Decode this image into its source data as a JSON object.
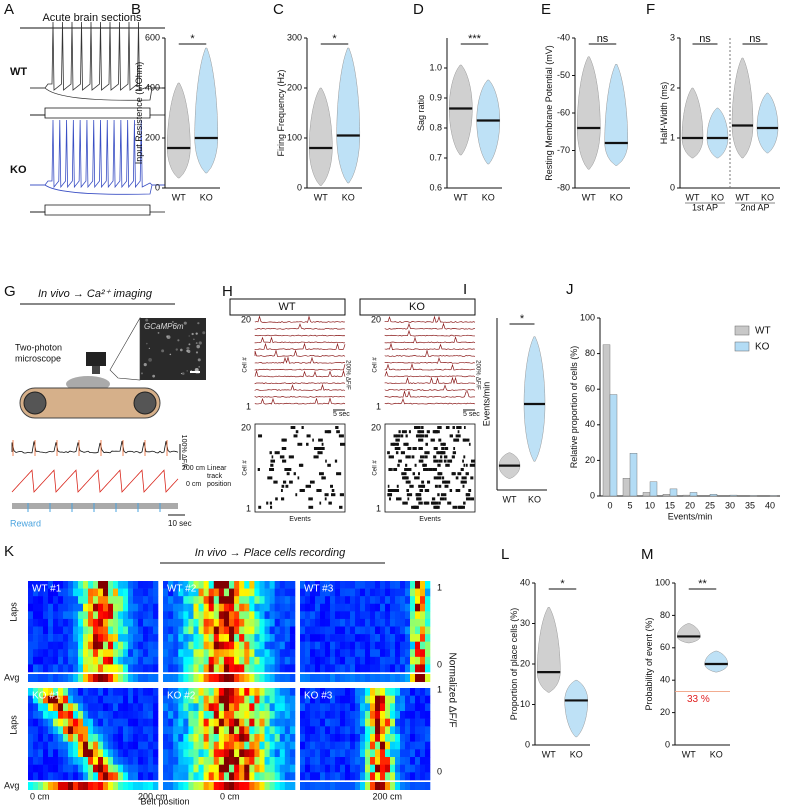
{
  "panels": {
    "A": {
      "label": "A",
      "title": "Acute brain sections",
      "rows": [
        "WT",
        "KO"
      ]
    },
    "G": {
      "label": "G",
      "title": "In vivo → Ca²⁺ imaging",
      "image_label": "GCaMP6m",
      "microscope": [
        "Two-photon",
        "microscope"
      ],
      "scale_df": "100% ΔF/F",
      "track_top": "200 cm",
      "track_label": [
        "Linear",
        "track"
      ],
      "track_bottom": "0 cm",
      "track_position": "position",
      "reward": "Reward",
      "time_scale": "10 sec"
    },
    "H": {
      "label": "H",
      "groups": [
        "WT",
        "KO"
      ],
      "cell_top": "20",
      "cell_bottom": "1",
      "cell_axis": "Cell #",
      "scale_df": "200% ΔF/F",
      "time_scale": "5 sec",
      "events": "Events"
    },
    "K": {
      "label": "K",
      "title": "In vivo → Place cells recording",
      "maps": [
        "WT #1",
        "WT #2",
        "WT #3",
        "KO #1",
        "KO #2",
        "KO #3"
      ],
      "laps": "Laps",
      "avg": "Avg",
      "colorbar": "Normalized ΔF/F",
      "colorbar_max": "1",
      "colorbar_min": "0",
      "x_start": "0 cm",
      "x_end": "200 cm",
      "x_label": "Belt position"
    }
  },
  "chart_data": [
    {
      "type": "violin",
      "label": "B",
      "y_label": "Input Resistence (MOhm)",
      "categories": [
        "WT",
        "KO"
      ],
      "values": [
        160,
        200
      ],
      "ranges": [
        [
          40,
          420
        ],
        [
          60,
          560
        ]
      ],
      "colors": [
        "#c8c8c8",
        "#b3dcf5"
      ],
      "ylim": [
        0,
        600
      ],
      "yticks": [
        0,
        200,
        400,
        600
      ],
      "significance": [
        "*"
      ]
    },
    {
      "type": "violin",
      "label": "C",
      "y_label": "Firing Frequency (Hz)",
      "categories": [
        "WT",
        "KO"
      ],
      "values": [
        80,
        105
      ],
      "ranges": [
        [
          5,
          200
        ],
        [
          10,
          280
        ]
      ],
      "colors": [
        "#c8c8c8",
        "#b3dcf5"
      ],
      "ylim": [
        0,
        300
      ],
      "yticks": [
        0,
        100,
        200,
        300
      ],
      "significance": [
        "*"
      ]
    },
    {
      "type": "violin",
      "label": "D",
      "y_label": "Sag ratio",
      "categories": [
        "WT",
        "KO"
      ],
      "values": [
        0.865,
        0.825
      ],
      "ranges": [
        [
          0.71,
          1.01
        ],
        [
          0.68,
          0.96
        ]
      ],
      "colors": [
        "#c8c8c8",
        "#b3dcf5"
      ],
      "ylim": [
        0.6,
        1.1
      ],
      "yticks": [
        0.6,
        0.7,
        0.8,
        0.9,
        {
          "value": 1,
          "label": "1.0"
        }
      ],
      "significance": [
        "***"
      ]
    },
    {
      "type": "violin",
      "label": "E",
      "y_label": "Resting Membrane Potential (mV)",
      "categories": [
        "WT",
        "KO"
      ],
      "values": [
        -64,
        -68
      ],
      "ranges": [
        [
          -75,
          -45
        ],
        [
          -74,
          -47
        ]
      ],
      "colors": [
        "#c8c8c8",
        "#b3dcf5"
      ],
      "ylim": [
        -80,
        -40
      ],
      "yticks": [
        -80,
        -70,
        -60,
        -50,
        -40
      ],
      "significance": [
        "ns"
      ]
    },
    {
      "type": "violin",
      "label": "F",
      "y_label": "Half-Width (ms)",
      "categories": [
        "WT",
        "KO",
        "WT",
        "KO"
      ],
      "group_labels": [
        "1st AP",
        "2nd AP"
      ],
      "values": [
        1.0,
        1.0,
        1.25,
        1.2
      ],
      "ranges": [
        [
          0.6,
          2.0
        ],
        [
          0.6,
          1.6
        ],
        [
          0.6,
          2.6
        ],
        [
          0.7,
          1.9
        ]
      ],
      "colors": [
        "#c8c8c8",
        "#b3dcf5",
        "#c8c8c8",
        "#b3dcf5"
      ],
      "ylim": [
        0,
        3
      ],
      "yticks": [
        0,
        1,
        2,
        3
      ],
      "significance": [
        "ns",
        "ns"
      ]
    },
    {
      "type": "violin",
      "label": "I",
      "y_label": "Events/min",
      "categories": [
        "WT",
        "KO"
      ],
      "values": [
        1.7,
        6
      ],
      "ranges": [
        [
          0.8,
          2.6
        ],
        [
          2,
          10.7
        ]
      ],
      "colors": [
        "#c8c8c8",
        "#b3dcf5"
      ],
      "ylim": [
        0,
        12
      ],
      "significance": [
        "*"
      ]
    },
    {
      "type": "bar",
      "label": "J",
      "y_label": "Relative proportion of cells (%)",
      "x_label": "Events/min",
      "categories": [
        "0",
        "5",
        "10",
        "15",
        "20",
        "25",
        "30",
        "35",
        "40"
      ],
      "series": [
        {
          "name": "WT",
          "color": "#c8c8c8",
          "values": [
            85,
            10,
            2,
            1,
            0.5,
            0,
            0,
            0,
            0
          ]
        },
        {
          "name": "KO",
          "color": "#b3dcf5",
          "values": [
            57,
            24,
            8,
            4,
            2,
            1,
            0.5,
            0.3,
            0.3
          ]
        }
      ],
      "ylim": [
        0,
        100
      ],
      "yticks": [
        0,
        20,
        40,
        60,
        80,
        100
      ],
      "legend": "top-right"
    },
    {
      "type": "violin",
      "label": "L",
      "y_label": "Proportion of place cells (%)",
      "categories": [
        "WT",
        "KO"
      ],
      "values": [
        18,
        11
      ],
      "ranges": [
        [
          13,
          34
        ],
        [
          2,
          16
        ]
      ],
      "colors": [
        "#c8c8c8",
        "#b3dcf5"
      ],
      "ylim": [
        0,
        40
      ],
      "yticks": [
        0,
        10,
        20,
        30,
        40
      ],
      "significance": [
        "*"
      ]
    },
    {
      "type": "violin",
      "label": "M",
      "y_label": "Probability of event (%)",
      "categories": [
        "WT",
        "KO"
      ],
      "values": [
        67,
        50
      ],
      "ranges": [
        [
          63,
          75
        ],
        [
          45,
          58
        ]
      ],
      "colors": [
        "#c8c8c8",
        "#b3dcf5"
      ],
      "ylim": [
        0,
        100
      ],
      "yticks": [
        0,
        20,
        40,
        60,
        80,
        100
      ],
      "significance": [
        "**"
      ],
      "reference": {
        "value": 33,
        "label": "33 %"
      }
    }
  ]
}
